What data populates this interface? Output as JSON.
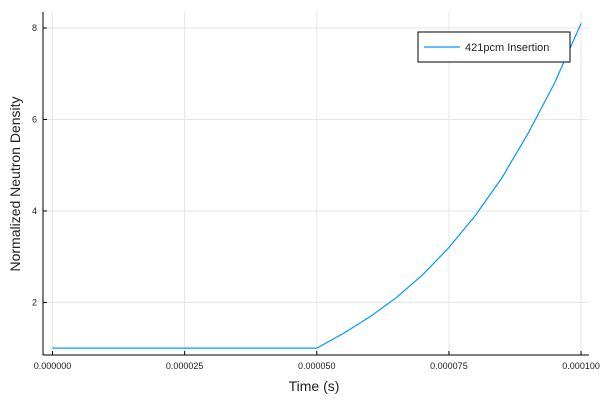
{
  "chart_data": {
    "type": "line",
    "title": "",
    "xlabel": "Time (s)",
    "ylabel": "Normalized Neutron Density",
    "xlim": [
      -1.8e-06,
      0.0001015
    ],
    "ylim": [
      0.85,
      8.35
    ],
    "x_ticks": [
      0,
      2.5e-05,
      5e-05,
      7.5e-05,
      0.0001
    ],
    "x_tick_labels": [
      "0.000000",
      "0.000025",
      "0.000050",
      "0.000075",
      "0.000100"
    ],
    "y_ticks": [
      2,
      4,
      6,
      8
    ],
    "y_tick_labels": [
      "2",
      "4",
      "6",
      "8"
    ],
    "grid": true,
    "legend_position": "top-right",
    "series": [
      {
        "name": "421pcm Insertion",
        "color": "#009af9",
        "x": [
          0,
          1e-05,
          2e-05,
          3e-05,
          4e-05,
          5e-05,
          5.5e-05,
          6e-05,
          6.5e-05,
          7e-05,
          7.5e-05,
          8e-05,
          8.5e-05,
          9e-05,
          9.5e-05,
          0.0001
        ],
        "y": [
          1.0,
          1.0,
          1.0,
          1.0,
          1.0,
          1.0,
          1.32,
          1.68,
          2.1,
          2.6,
          3.2,
          3.9,
          4.72,
          5.7,
          6.8,
          8.1
        ]
      }
    ]
  }
}
